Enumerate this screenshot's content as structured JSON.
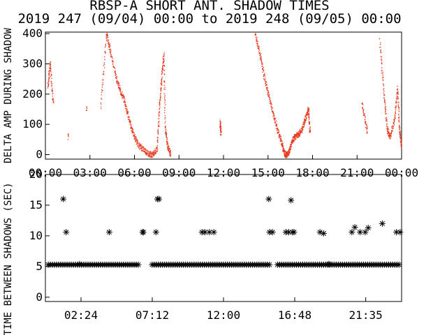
{
  "title": "RBSP-A SHORT ANT. SHADOW TIMES",
  "subtitle": "2019 247 (09/04) 00:00 to 2019 248 (09/05) 00:00",
  "chart_data": [
    {
      "type": "scatter",
      "ylabel": "DELTA AMP DURING SHADOW",
      "xlim": [
        0,
        24
      ],
      "ylim": [
        -15,
        405
      ],
      "x_tick_labels": [
        "00:00",
        "03:00",
        "06:00",
        "09:00",
        "12:00",
        "15:00",
        "18:00",
        "21:00",
        "00:00"
      ],
      "y_tick_labels": [
        "0",
        "100",
        "200",
        "300",
        "400"
      ],
      "point_color": "#e63a1e",
      "grid": false,
      "series": [
        {
          "x": [
            0.15,
            0.3,
            0.5,
            1.5,
            2.75,
            3.7,
            4.1,
            4.35,
            4.7,
            5.0,
            5.3,
            5.6,
            5.9,
            6.2,
            6.55,
            6.9,
            7.2,
            7.5,
            7.65,
            7.8,
            7.95,
            8.05,
            8.2,
            8.4,
            11.75,
            11.8,
            14.1,
            14.4,
            14.7,
            15.0,
            15.3,
            15.6,
            15.9,
            16.05,
            16.2,
            16.35,
            16.5,
            16.7,
            16.9,
            17.1,
            17.3,
            17.5,
            17.7,
            17.8,
            21.3,
            21.65,
            22.5,
            22.8,
            23.0,
            23.2,
            23.5,
            23.7,
            23.85,
            23.95
          ],
          "y": [
            225,
            305,
            175,
            60,
            150,
            160,
            400,
            345,
            265,
            215,
            180,
            120,
            70,
            35,
            20,
            5,
            0,
            20,
            150,
            250,
            335,
            90,
            30,
            5,
            110,
            75,
            405,
            340,
            265,
            200,
            140,
            85,
            40,
            8,
            0,
            5,
            30,
            55,
            65,
            70,
            90,
            120,
            155,
            75,
            170,
            80,
            380,
            200,
            85,
            60,
            115,
            220,
            80,
            35
          ]
        }
      ]
    },
    {
      "type": "scatter",
      "ylabel": "TIME BETWEEN SHADOWS (SEC)",
      "xlim": [
        0,
        24
      ],
      "ylim": [
        -0.7,
        20
      ],
      "x_tick_labels": [
        "02:24",
        "07:12",
        "12:00",
        "16:48",
        "21:35"
      ],
      "y_tick_labels": [
        "0",
        "5",
        "10",
        "15",
        "20"
      ],
      "marker": "asterisk",
      "series": [
        {
          "x": [
            1.2,
            1.4,
            2.3,
            4.3,
            6.55,
            6.6,
            7.45,
            7.55,
            7.65,
            10.55,
            10.75,
            11.05,
            11.35,
            15.05,
            15.1,
            15.3,
            16.2,
            16.4,
            16.55,
            16.65,
            16.75,
            18.5,
            18.75,
            19.1,
            20.65,
            20.85,
            21.2,
            21.55,
            21.75,
            22.7,
            23.65,
            23.9
          ],
          "y": [
            16,
            10.6,
            5.4,
            10.6,
            10.6,
            10.6,
            10.6,
            16,
            16,
            10.6,
            10.6,
            10.6,
            10.6,
            16,
            10.6,
            10.6,
            10.6,
            10.6,
            15.8,
            10.6,
            10.6,
            10.6,
            10.4,
            5.4,
            10.6,
            11.4,
            10.6,
            10.6,
            11.3,
            12,
            10.6,
            10.6
          ]
        },
        {
          "name": "",
          "x_ranges": [
            [
              0,
              6.45
            ],
            [
              7.0,
              15.2
            ],
            [
              15.45,
              24
            ]
          ],
          "y": 5.3
        }
      ]
    }
  ]
}
